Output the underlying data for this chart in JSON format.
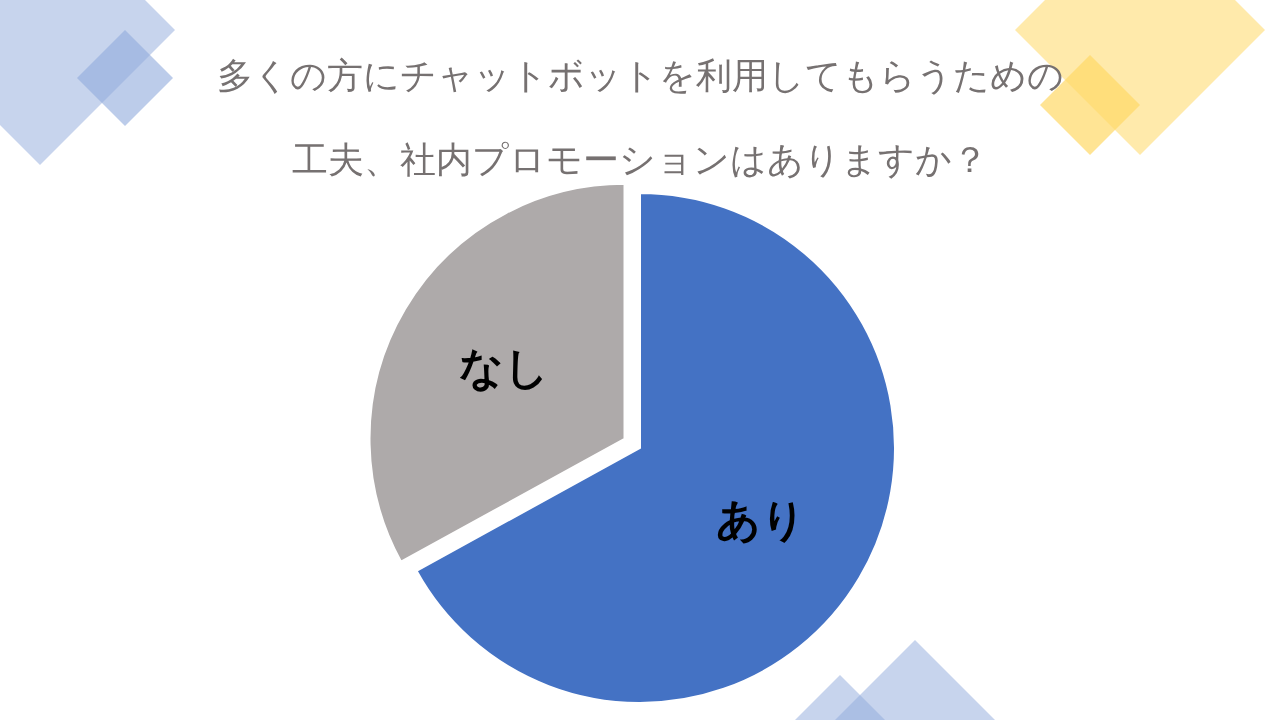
{
  "chart_data": {
    "type": "pie",
    "title": "多くの方にチャットボットを利用してもらうための工夫、社内プロモーションはありますか？",
    "categories": [
      "あり",
      "なし"
    ],
    "values": [
      67,
      33
    ],
    "colors": [
      "#4472c4",
      "#aeaaaa"
    ],
    "legend": false
  }
}
